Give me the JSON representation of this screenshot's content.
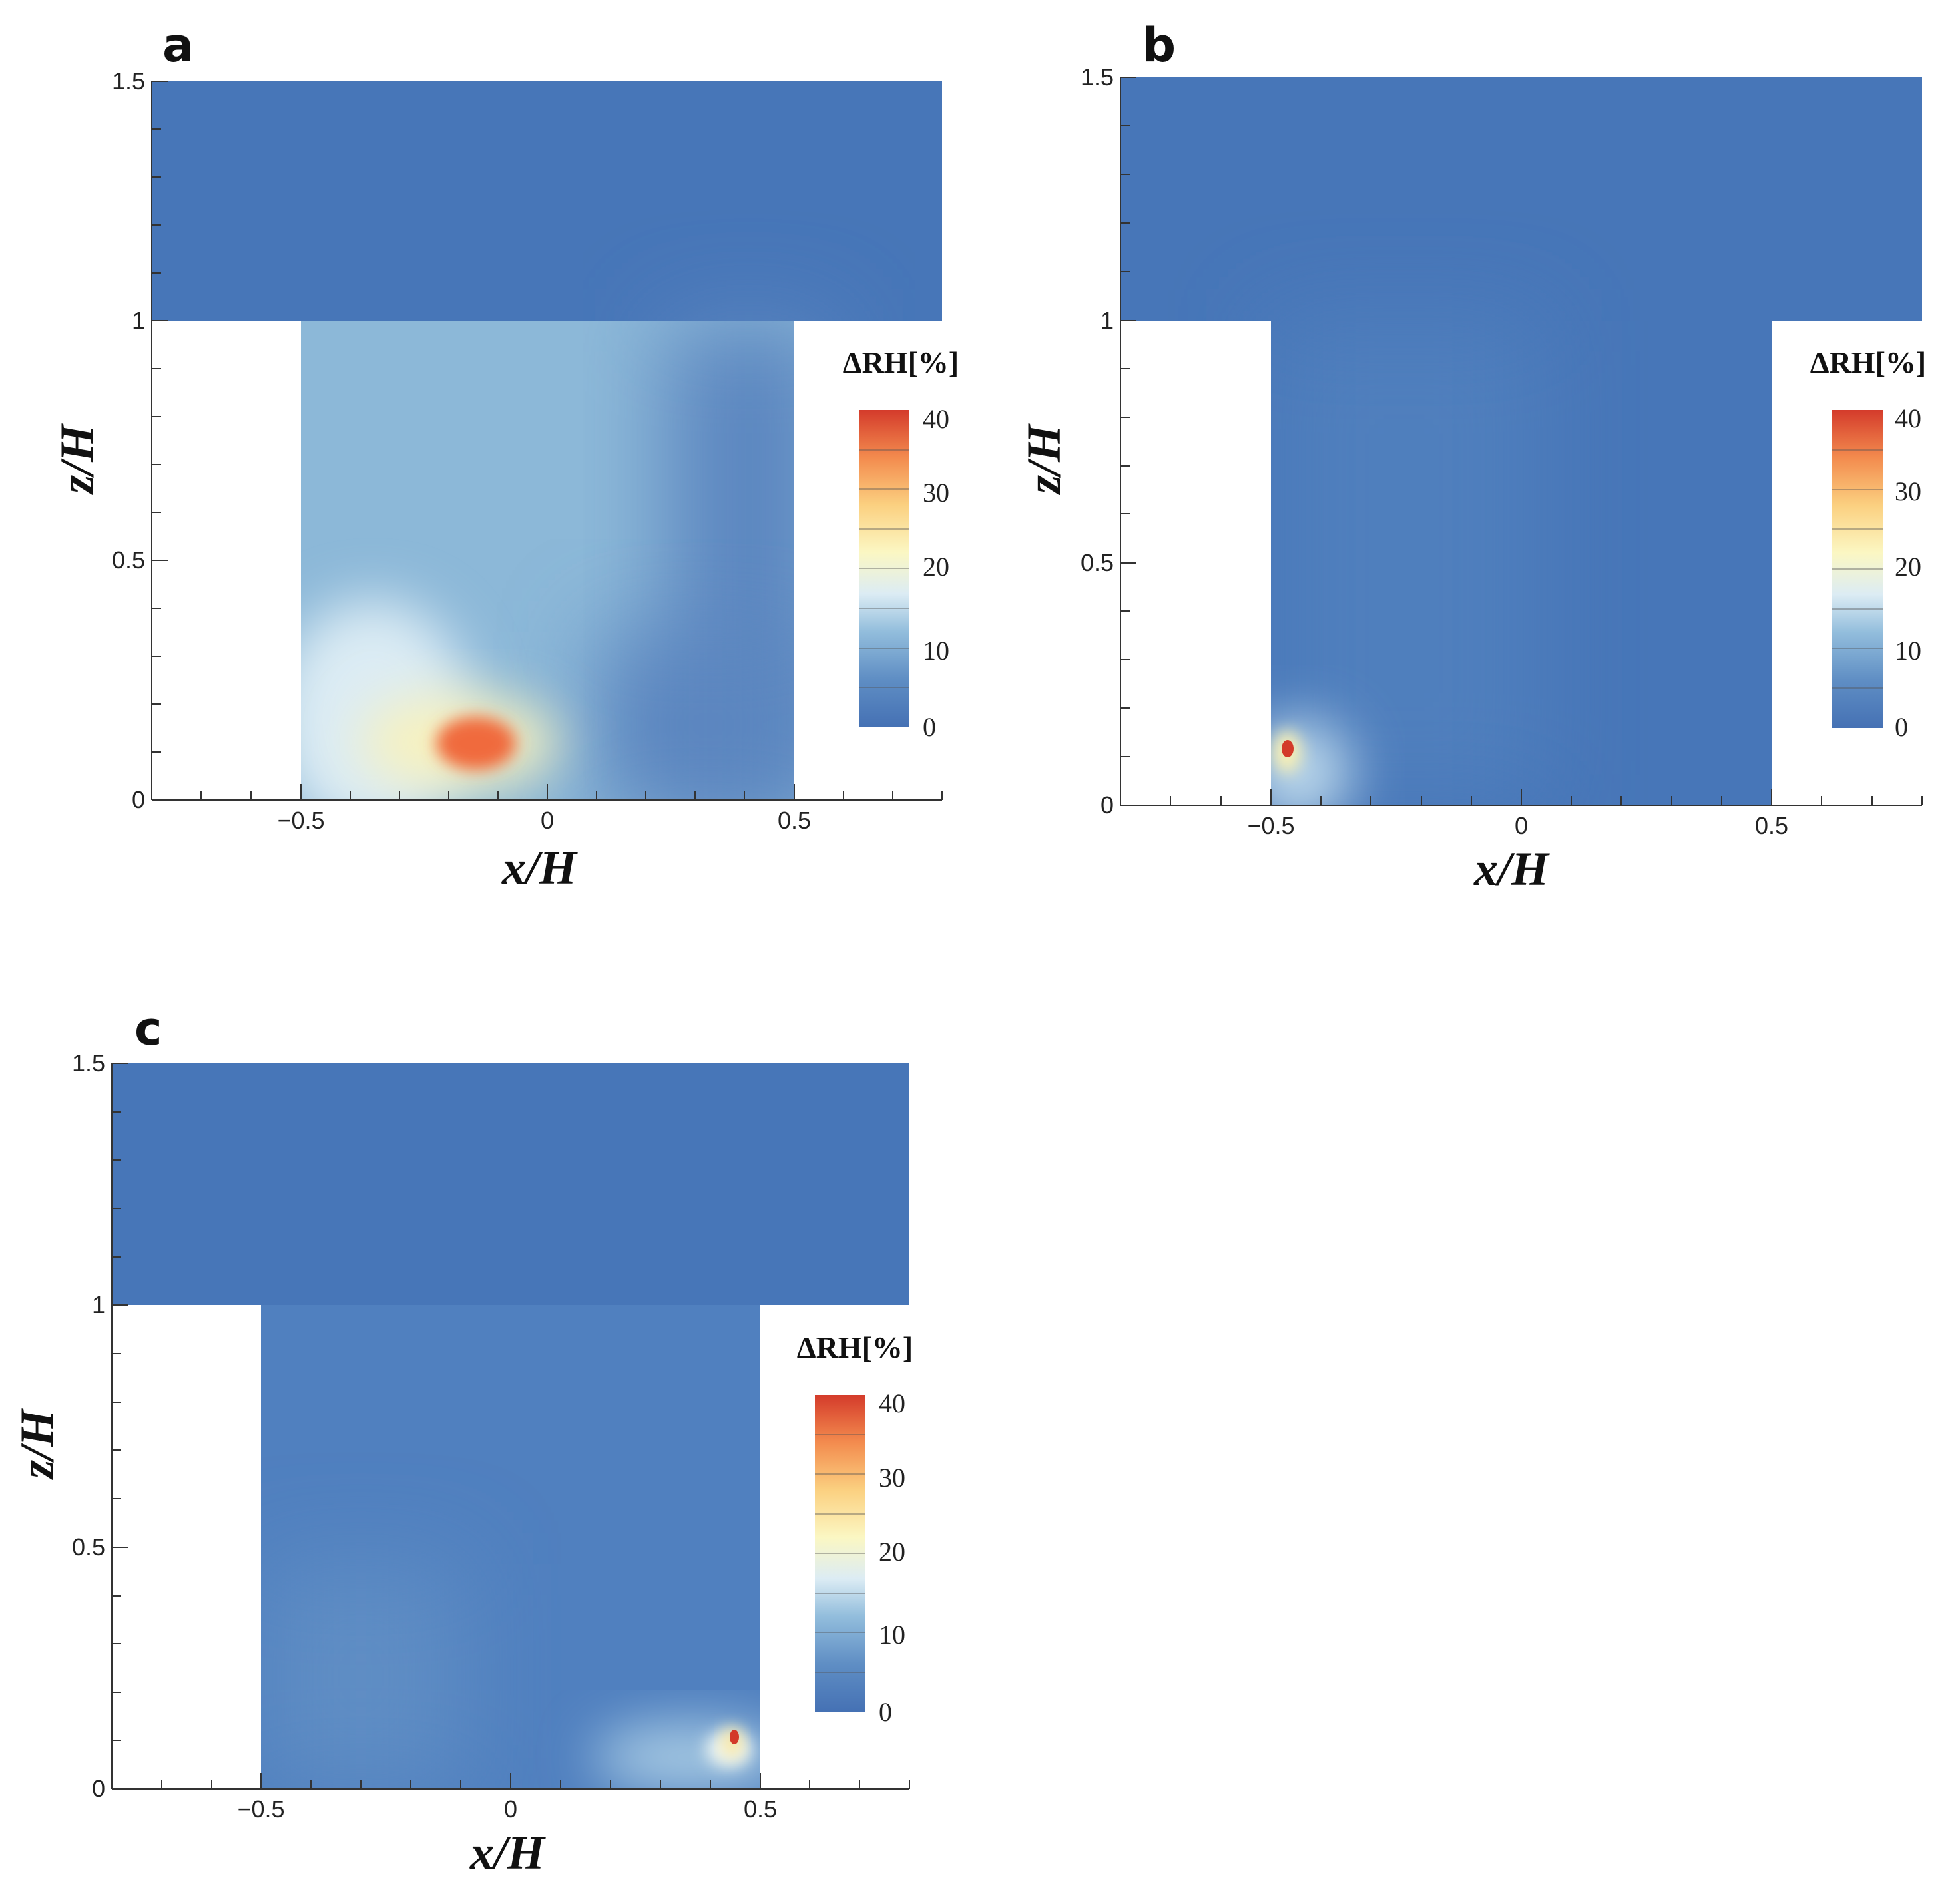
{
  "colors": {
    "background_blue": "#4776b8",
    "gradient": [
      "#4571b4",
      "#5f8ec4",
      "#92bddc",
      "#dcecf4",
      "#fbf7c3",
      "#fbd080",
      "#f38b4e",
      "#d43b2b"
    ]
  },
  "chart_data": [
    {
      "type": "heatmap",
      "panel_label": "a",
      "xlabel": "x/H",
      "ylabel": "z/H",
      "xlim": [
        -0.8,
        0.8
      ],
      "ylim": [
        0,
        1.5
      ],
      "x_ticks": [
        -0.5,
        0,
        0.5
      ],
      "x_tick_labels": [
        "−0.5",
        "0",
        "0.5"
      ],
      "y_ticks": [
        0,
        0.5,
        1,
        1.5
      ],
      "y_tick_labels": [
        "0",
        "0.5",
        "1",
        "1.5"
      ],
      "domain": "T-shaped: canyon x from -0.5 to 0.5 for z 0 to 1; full width for z 1 to 1.5",
      "colorbar": {
        "title": "ΔRH[%]",
        "range": [
          0,
          40
        ],
        "ticks": [
          "0",
          "10",
          "20",
          "30",
          "40"
        ]
      },
      "field": {
        "upper_region_value": 1,
        "canyon_background": 8,
        "hotspot": {
          "x": -0.15,
          "z": 0.12,
          "peak": 36
        },
        "plume_toward": "windward wall lower left"
      }
    },
    {
      "type": "heatmap",
      "panel_label": "b",
      "xlabel": "x/H",
      "ylabel": "z/H",
      "xlim": [
        -0.8,
        0.8
      ],
      "ylim": [
        0,
        1.5
      ],
      "x_ticks": [
        -0.5,
        0,
        0.5
      ],
      "x_tick_labels": [
        "−0.5",
        "0",
        "0.5"
      ],
      "y_ticks": [
        0,
        0.5,
        1,
        1.5
      ],
      "y_tick_labels": [
        "0",
        "0.5",
        "1",
        "1.5"
      ],
      "domain": "T-shaped: canyon x from -0.5 to 0.5 for z 0 to 1; full width for z 1 to 1.5",
      "colorbar": {
        "title": "ΔRH[%]",
        "range": [
          0,
          40
        ],
        "ticks": [
          "0",
          "10",
          "20",
          "30",
          "40"
        ]
      },
      "field": {
        "upper_region_value": 1,
        "canyon_background": 1.5,
        "hotspot": {
          "x": -0.46,
          "z": 0.12,
          "peak": 40
        }
      }
    },
    {
      "type": "heatmap",
      "panel_label": "c",
      "xlabel": "x/H",
      "ylabel": "z/H",
      "xlim": [
        -0.8,
        0.8
      ],
      "ylim": [
        0,
        1.5
      ],
      "x_ticks": [
        -0.5,
        0,
        0.5
      ],
      "x_tick_labels": [
        "−0.5",
        "0",
        "0.5"
      ],
      "y_ticks": [
        0,
        0.5,
        1,
        1.5
      ],
      "y_tick_labels": [
        "0",
        "0.5",
        "1",
        "1.5"
      ],
      "domain": "T-shaped: canyon x from -0.5 to 0.5 for z 0 to 1; full width for z 1 to 1.5",
      "colorbar": {
        "title": "ΔRH[%]",
        "range": [
          0,
          40
        ],
        "ticks": [
          "0",
          "10",
          "20",
          "30",
          "40"
        ]
      },
      "field": {
        "upper_region_value": 1,
        "canyon_background": 3,
        "hotspot": {
          "x": 0.45,
          "z": 0.1,
          "peak": 40
        }
      }
    }
  ]
}
